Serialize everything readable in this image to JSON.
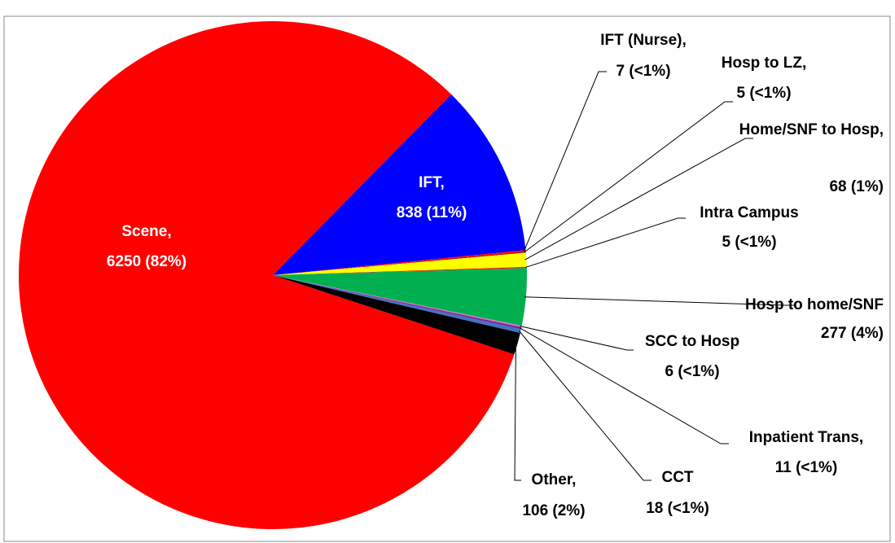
{
  "chart_data": {
    "type": "pie",
    "categories": [
      "IFT,",
      "IFT (Nurse),",
      "Hosp to LZ,",
      "Home/SNF to Hosp,",
      "Intra Campus",
      "Hosp to home/SNF",
      "SCC to Hosp",
      "Inpatient Trans,",
      "CCT",
      "Other,",
      "Scene,"
    ],
    "values": [
      838,
      7,
      5,
      68,
      5,
      277,
      6,
      11,
      18,
      106,
      6250
    ],
    "value_labels": [
      "838 (11%)",
      "7 (<1%)",
      "5 (<1%)",
      "68 (1%)",
      "5 (<1%)",
      "277 (4%)",
      "6 (<1%)",
      "11 (<1%)",
      "18 (<1%)",
      "106 (2%)",
      "6250 (82%)"
    ],
    "colors": [
      "#0000ff",
      "#ff0000",
      "#c00000",
      "#ffff00",
      "#ff0000",
      "#00b050",
      "#ff66cc",
      "#7030a0",
      "#4472c4",
      "#000000",
      "#ff0000"
    ]
  }
}
